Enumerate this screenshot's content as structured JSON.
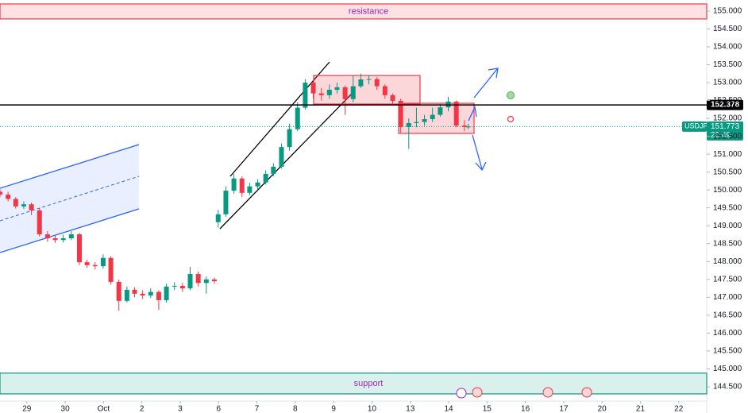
{
  "chart_data": {
    "type": "candlestick",
    "symbol": "USDJPY",
    "x": [
      -0.7,
      -0.49,
      -0.29,
      -0.08,
      0.12,
      0.33,
      0.54,
      0.74,
      0.95,
      1.16,
      1.37,
      1.57,
      1.78,
      1.99,
      2.19,
      2.4,
      2.61,
      2.81,
      3.02,
      3.23,
      3.44,
      3.64,
      3.85,
      4.06,
      4.26,
      4.47,
      4.68,
      4.89,
      4.99,
      5.19,
      5.4,
      5.61,
      5.81,
      6.02,
      6.23,
      6.43,
      6.64,
      6.85,
      7.06,
      7.26,
      7.47,
      7.68,
      7.89,
      8.09,
      8.3,
      8.51,
      8.71,
      8.92,
      9.13,
      9.34,
      9.54,
      9.75,
      9.96,
      10.16,
      10.37,
      10.58,
      10.78,
      10.99,
      11.2,
      11.41,
      11.51
    ],
    "open": [
      149.95,
      149.87,
      149.75,
      149.54,
      149.6,
      149.43,
      148.76,
      148.65,
      148.6,
      148.65,
      148.76,
      147.98,
      147.9,
      147.87,
      148.1,
      147.43,
      146.9,
      147.21,
      147.1,
      147.05,
      147.15,
      146.92,
      147.3,
      147.32,
      147.25,
      147.65,
      147.4,
      147.5,
      149.1,
      149.32,
      149.98,
      150.32,
      149.92,
      150.1,
      150.21,
      150.45,
      150.65,
      151.2,
      151.7,
      152.3,
      153.0,
      152.7,
      152.65,
      152.8,
      152.87,
      152.54,
      152.9,
      153.09,
      153.1,
      152.9,
      152.65,
      152.49,
      151.76,
      151.87,
      151.9,
      151.98,
      152.1,
      152.31,
      152.47,
      151.8,
      151.76
    ],
    "high": [
      150.02,
      149.95,
      149.8,
      149.68,
      149.65,
      149.48,
      148.85,
      148.72,
      148.75,
      148.85,
      148.8,
      148.05,
      147.98,
      148.2,
      148.15,
      147.5,
      147.3,
      147.28,
      147.2,
      147.25,
      147.2,
      147.38,
      147.42,
      147.4,
      147.85,
      147.72,
      147.58,
      147.55,
      149.45,
      150.1,
      150.45,
      150.38,
      150.2,
      150.3,
      150.55,
      150.75,
      151.3,
      151.85,
      152.45,
      153.1,
      153.05,
      152.85,
      152.95,
      153.0,
      152.92,
      153.2,
      153.25,
      153.2,
      153.15,
      152.95,
      152.7,
      152.55,
      152.0,
      152.3,
      152.1,
      152.3,
      152.4,
      152.6,
      152.5,
      151.95,
      151.85
    ],
    "low": [
      149.8,
      149.68,
      149.48,
      149.47,
      149.3,
      148.7,
      148.55,
      148.52,
      148.53,
      148.6,
      147.9,
      147.82,
      147.78,
      147.8,
      147.35,
      146.62,
      146.85,
      147.0,
      146.95,
      146.98,
      146.65,
      146.85,
      147.2,
      147.15,
      147.2,
      147.3,
      147.1,
      147.38,
      148.95,
      149.25,
      149.9,
      149.8,
      149.85,
      150.0,
      150.15,
      150.38,
      150.6,
      151.1,
      151.65,
      152.25,
      152.55,
      152.5,
      152.55,
      152.7,
      152.1,
      152.45,
      152.85,
      152.95,
      152.8,
      152.55,
      152.4,
      151.6,
      151.15,
      151.75,
      151.8,
      151.9,
      152.05,
      152.2,
      151.75,
      151.65,
      151.7
    ],
    "close": [
      149.87,
      149.75,
      149.54,
      149.6,
      149.43,
      148.76,
      148.65,
      148.6,
      148.65,
      148.76,
      147.98,
      147.9,
      147.87,
      148.1,
      147.43,
      146.9,
      147.21,
      147.1,
      147.05,
      147.15,
      146.92,
      147.3,
      147.32,
      147.25,
      147.65,
      147.4,
      147.5,
      147.45,
      149.32,
      149.98,
      150.32,
      149.92,
      150.1,
      150.21,
      150.45,
      150.65,
      151.2,
      151.7,
      152.3,
      153.0,
      152.7,
      152.65,
      152.8,
      152.87,
      152.54,
      152.9,
      153.09,
      153.1,
      152.9,
      152.65,
      152.49,
      151.76,
      151.87,
      151.9,
      151.98,
      152.1,
      152.31,
      152.47,
      151.8,
      151.76,
      151.773
    ],
    "up_color": "#089981",
    "down_color": "#f23645",
    "xlim": [
      -0.7,
      17.73
    ],
    "xticks": [
      {
        "value": 0,
        "label": "29"
      },
      {
        "value": 1,
        "label": "30"
      },
      {
        "value": 2,
        "label": "Oct"
      },
      {
        "value": 3,
        "label": "2"
      },
      {
        "value": 4,
        "label": "3"
      },
      {
        "value": 5,
        "label": "6"
      },
      {
        "value": 6,
        "label": "7"
      },
      {
        "value": 7,
        "label": "8"
      },
      {
        "value": 8,
        "label": "9"
      },
      {
        "value": 9,
        "label": "10"
      },
      {
        "value": 10,
        "label": "13"
      },
      {
        "value": 11,
        "label": "14"
      },
      {
        "value": 12,
        "label": "15"
      },
      {
        "value": 13,
        "label": "16"
      },
      {
        "value": 14,
        "label": "17"
      },
      {
        "value": 15,
        "label": "20"
      },
      {
        "value": 16,
        "label": "21"
      },
      {
        "value": 17,
        "label": "22"
      }
    ],
    "ylim": [
      144.21,
      155.31
    ],
    "yticks": [
      {
        "value": 144.5,
        "label": "144.500"
      },
      {
        "value": 145,
        "label": "145.000"
      },
      {
        "value": 145.5,
        "label": "145.500"
      },
      {
        "value": 146,
        "label": "146.000"
      },
      {
        "value": 146.5,
        "label": "146.500"
      },
      {
        "value": 147,
        "label": "147.000"
      },
      {
        "value": 147.5,
        "label": "147.500"
      },
      {
        "value": 148,
        "label": "148.000"
      },
      {
        "value": 148.5,
        "label": "148.500"
      },
      {
        "value": 149,
        "label": "149.000"
      },
      {
        "value": 149.5,
        "label": "149.500"
      },
      {
        "value": 150,
        "label": "150.000"
      },
      {
        "value": 150.5,
        "label": "150.500"
      },
      {
        "value": 151,
        "label": "151.000"
      },
      {
        "value": 151.5,
        "label": "151.500"
      },
      {
        "value": 152,
        "label": "152.000"
      },
      {
        "value": 152.5,
        "label": "152.500"
      },
      {
        "value": 153,
        "label": "153.000"
      },
      {
        "value": 153.5,
        "label": "153.500"
      },
      {
        "value": 154,
        "label": "154.000"
      },
      {
        "value": 154.5,
        "label": "154.500"
      },
      {
        "value": 155,
        "label": "155.000"
      }
    ],
    "grid": false,
    "zones": [
      {
        "label": "resistance",
        "from": 154.78,
        "to": 155.2,
        "color": "#f23645"
      },
      {
        "label": "support",
        "from": 144.3,
        "to": 144.88,
        "color": "#089981"
      }
    ],
    "hline": {
      "value": 152.378,
      "color": "#000000"
    },
    "last": {
      "price": 151.773,
      "time": "20:49",
      "color": "#089981"
    }
  }
}
